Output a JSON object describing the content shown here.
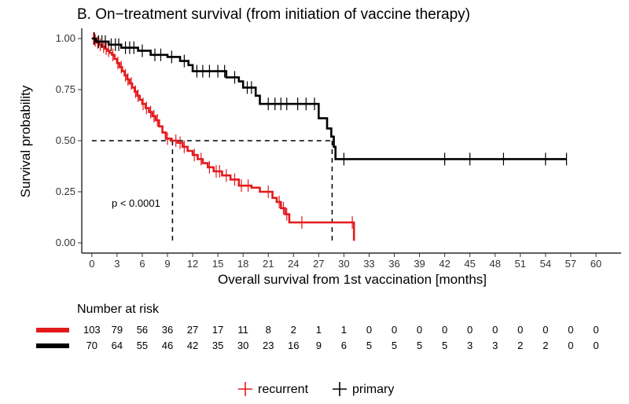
{
  "chart_data": {
    "type": "line",
    "subtype": "kaplan-meier",
    "title": "B. On−treatment survival (from initiation of vaccine therapy)",
    "xlabel": "Overall survival from 1st vaccination [months]",
    "ylabel": "Survival probability",
    "xlim": [
      -1.2,
      63
    ],
    "ylim": [
      -0.05,
      1.05
    ],
    "x_ticks": [
      0,
      3,
      6,
      9,
      12,
      15,
      18,
      21,
      24,
      27,
      30,
      33,
      36,
      39,
      42,
      45,
      48,
      51,
      54,
      57,
      60
    ],
    "y_ticks": [
      0.0,
      0.25,
      0.5,
      0.75,
      1.0
    ],
    "y_tick_labels": [
      "0.00",
      "0.25",
      "0.50",
      "0.75",
      "1.00"
    ],
    "annotation": "p < 0.0001",
    "median_line": {
      "y": 0.5,
      "recurrent_median_x": 9.6,
      "primary_median_x": 28.6
    },
    "series": [
      {
        "name": "recurrent",
        "color": "#e31a1c",
        "steps": [
          [
            0,
            1.0
          ],
          [
            0.3,
            0.99
          ],
          [
            0.6,
            0.98
          ],
          [
            0.9,
            0.97
          ],
          [
            1.2,
            0.96
          ],
          [
            1.5,
            0.95
          ],
          [
            1.8,
            0.94
          ],
          [
            2.1,
            0.93
          ],
          [
            2.4,
            0.92
          ],
          [
            2.7,
            0.9
          ],
          [
            3.0,
            0.88
          ],
          [
            3.3,
            0.86
          ],
          [
            3.6,
            0.84
          ],
          [
            3.9,
            0.82
          ],
          [
            4.2,
            0.8
          ],
          [
            4.5,
            0.78
          ],
          [
            4.8,
            0.76
          ],
          [
            5.1,
            0.74
          ],
          [
            5.4,
            0.72
          ],
          [
            5.7,
            0.7
          ],
          [
            6.0,
            0.68
          ],
          [
            6.4,
            0.66
          ],
          [
            6.8,
            0.64
          ],
          [
            7.2,
            0.62
          ],
          [
            7.6,
            0.6
          ],
          [
            8.0,
            0.57
          ],
          [
            8.4,
            0.54
          ],
          [
            8.8,
            0.51
          ],
          [
            9.5,
            0.5
          ],
          [
            10.2,
            0.49
          ],
          [
            10.8,
            0.47
          ],
          [
            11.4,
            0.45
          ],
          [
            12.0,
            0.43
          ],
          [
            12.6,
            0.41
          ],
          [
            13.2,
            0.39
          ],
          [
            13.8,
            0.37
          ],
          [
            14.5,
            0.35
          ],
          [
            15.5,
            0.33
          ],
          [
            16.5,
            0.31
          ],
          [
            17.5,
            0.28
          ],
          [
            19.0,
            0.27
          ],
          [
            20.0,
            0.25
          ],
          [
            21.5,
            0.22
          ],
          [
            22.0,
            0.2
          ],
          [
            22.5,
            0.17
          ],
          [
            23.0,
            0.14
          ],
          [
            23.5,
            0.1
          ],
          [
            31.2,
            0.1
          ],
          [
            31.2,
            0.01
          ]
        ],
        "censor_x": [
          0.2,
          0.4,
          0.7,
          1.0,
          1.4,
          1.7,
          2.0,
          2.5,
          3.1,
          3.5,
          4.0,
          4.3,
          4.7,
          5.2,
          5.5,
          6.1,
          6.5,
          7.0,
          7.4,
          7.8,
          9.0,
          10.0,
          10.5,
          11.0,
          12.2,
          13.0,
          14.0,
          14.8,
          15.2,
          16.0,
          17.0,
          17.8,
          18.6,
          21.0,
          22.3,
          22.8,
          23.2,
          25.0,
          31.0
        ]
      },
      {
        "name": "primary",
        "color": "#000000",
        "steps": [
          [
            0,
            1.0
          ],
          [
            0.5,
            0.985
          ],
          [
            2.0,
            0.97
          ],
          [
            3.5,
            0.955
          ],
          [
            5.5,
            0.94
          ],
          [
            7.0,
            0.92
          ],
          [
            9.0,
            0.91
          ],
          [
            10.5,
            0.89
          ],
          [
            11.5,
            0.87
          ],
          [
            12.0,
            0.84
          ],
          [
            16.0,
            0.81
          ],
          [
            17.5,
            0.79
          ],
          [
            18.0,
            0.76
          ],
          [
            19.5,
            0.72
          ],
          [
            20.0,
            0.68
          ],
          [
            27.0,
            0.61
          ],
          [
            28.0,
            0.56
          ],
          [
            28.5,
            0.52
          ],
          [
            28.8,
            0.47
          ],
          [
            29.0,
            0.41
          ],
          [
            56.5,
            0.41
          ]
        ],
        "censor_x": [
          0.3,
          0.8,
          1.2,
          1.6,
          2.3,
          2.8,
          3.2,
          4.0,
          4.5,
          5.0,
          6.0,
          7.5,
          8.2,
          9.5,
          11.0,
          12.5,
          13.2,
          14.0,
          15.0,
          15.8,
          17.0,
          18.5,
          19.0,
          21.0,
          21.8,
          22.5,
          23.2,
          24.5,
          25.5,
          26.5,
          30.0,
          42.0,
          45.0,
          49.0,
          54.0,
          56.5
        ]
      }
    ],
    "risk_table": {
      "title": "Number at risk",
      "times": [
        0,
        3,
        6,
        9,
        12,
        15,
        18,
        21,
        24,
        27,
        30,
        33,
        36,
        39,
        42,
        45,
        48,
        51,
        54,
        57,
        60
      ],
      "rows": [
        {
          "name": "recurrent",
          "color": "#e31a1c",
          "values": [
            103,
            79,
            56,
            36,
            27,
            17,
            11,
            8,
            2,
            1,
            1,
            0,
            0,
            0,
            0,
            0,
            0,
            0,
            0,
            0,
            0
          ]
        },
        {
          "name": "primary",
          "color": "#000000",
          "values": [
            70,
            64,
            55,
            46,
            42,
            35,
            30,
            23,
            16,
            9,
            6,
            5,
            5,
            5,
            5,
            3,
            3,
            2,
            2,
            0,
            0
          ]
        }
      ]
    },
    "legend": {
      "position": "bottom",
      "entries": [
        {
          "label": "recurrent",
          "color": "#e31a1c"
        },
        {
          "label": "primary",
          "color": "#000000"
        }
      ]
    }
  }
}
